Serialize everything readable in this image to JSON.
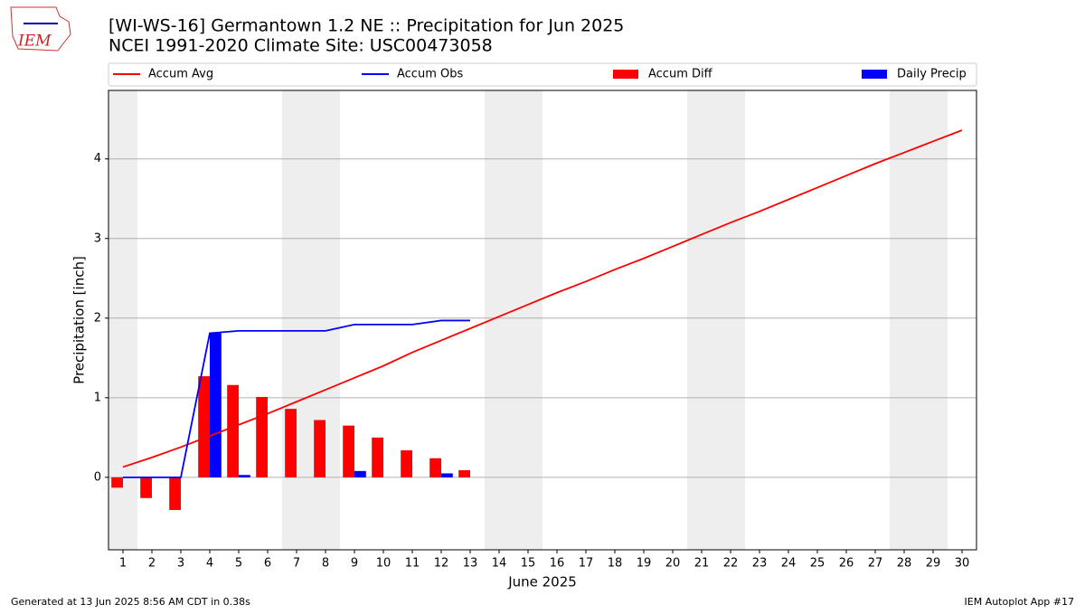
{
  "logo_text": "IEM",
  "chart_data": {
    "type": "combo",
    "title": "[WI-WS-16] Germantown 1.2 NE :: Precipitation for Jun 2025",
    "subtitle": "NCEI 1991-2020 Climate Site: USC00473058",
    "x_label": "June 2025",
    "y_label": "Precipitation [inch]",
    "x": [
      1,
      2,
      3,
      4,
      5,
      6,
      7,
      8,
      9,
      10,
      11,
      12,
      13,
      14,
      15,
      16,
      17,
      18,
      19,
      20,
      21,
      22,
      23,
      24,
      25,
      26,
      27,
      28,
      29,
      30
    ],
    "xlim": [
      0.5,
      30.5
    ],
    "xticks": [
      1,
      2,
      3,
      4,
      5,
      6,
      7,
      8,
      9,
      10,
      11,
      12,
      13,
      14,
      15,
      16,
      17,
      18,
      19,
      20,
      21,
      22,
      23,
      24,
      25,
      26,
      27,
      28,
      29,
      30
    ],
    "ylim": [
      -0.91,
      4.86
    ],
    "yticks": [
      0,
      1,
      2,
      3,
      4
    ],
    "grid": true,
    "legend": "top",
    "shaded_ranges": [
      [
        0.5,
        1.5
      ],
      [
        6.5,
        8.5
      ],
      [
        13.5,
        15.5
      ],
      [
        20.5,
        22.5
      ],
      [
        27.5,
        29.5
      ]
    ],
    "series": [
      {
        "name": "Accum Avg",
        "type": "line",
        "color": "#ff0000",
        "values": [
          0.13,
          0.25,
          0.38,
          0.52,
          0.66,
          0.8,
          0.95,
          1.1,
          1.25,
          1.4,
          1.57,
          1.72,
          1.87,
          2.02,
          2.17,
          2.32,
          2.46,
          2.61,
          2.75,
          2.9,
          3.05,
          3.2,
          3.34,
          3.49,
          3.64,
          3.79,
          3.94,
          4.08,
          4.22,
          4.36
        ]
      },
      {
        "name": "Accum Obs",
        "type": "line",
        "color": "#0000ff",
        "values": [
          0,
          0,
          0,
          1.81,
          1.84,
          1.84,
          1.84,
          1.84,
          1.92,
          1.92,
          1.92,
          1.97,
          1.97,
          null,
          null,
          null,
          null,
          null,
          null,
          null,
          null,
          null,
          null,
          null,
          null,
          null,
          null,
          null,
          null,
          null
        ]
      },
      {
        "name": "Accum Diff",
        "type": "bar",
        "color": "#ff0000",
        "values": [
          -0.13,
          -0.26,
          -0.41,
          1.27,
          1.16,
          1.01,
          0.86,
          0.72,
          0.65,
          0.5,
          0.34,
          0.24,
          0.09,
          null,
          null,
          null,
          null,
          null,
          null,
          null,
          null,
          null,
          null,
          null,
          null,
          null,
          null,
          null,
          null,
          null
        ]
      },
      {
        "name": "Daily Precip",
        "type": "bar",
        "color": "#0000ff",
        "values": [
          0,
          0,
          0,
          1.81,
          0.03,
          0,
          0,
          0,
          0.08,
          0,
          0,
          0.05,
          0,
          null,
          null,
          null,
          null,
          null,
          null,
          null,
          null,
          null,
          null,
          null,
          null,
          null,
          null,
          null,
          null,
          null
        ]
      }
    ]
  },
  "footer_left": "Generated at 13 Jun 2025 8:56 AM CDT in 0.38s",
  "footer_right": "IEM Autoplot App #17"
}
